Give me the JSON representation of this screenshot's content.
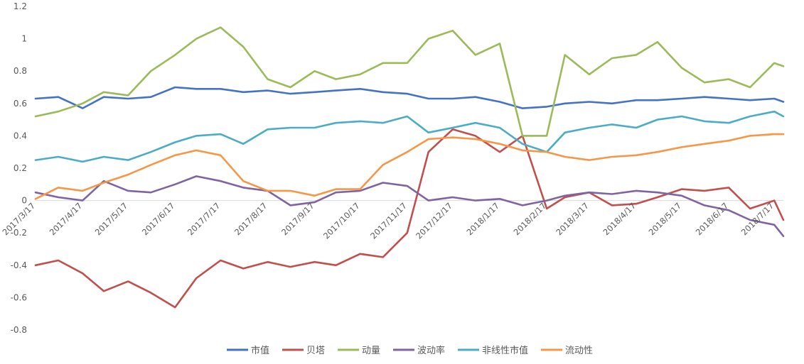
{
  "chart_data": {
    "type": "line",
    "title": "",
    "xlabel": "",
    "ylabel": "",
    "ylim": [
      -0.8,
      1.2
    ],
    "y_ticks": [
      "1.2",
      "1",
      "0.8",
      "0.6",
      "0.4",
      "0.2",
      "0",
      "-0.2",
      "-0.4",
      "-0.6",
      "-0.8"
    ],
    "y_tick_values": [
      1.2,
      1.0,
      0.8,
      0.6,
      0.4,
      0.2,
      0,
      -0.2,
      -0.4,
      -0.6,
      -0.8
    ],
    "grid": false,
    "legend_position": "bottom",
    "x_tick_labels": [
      "2017/3/17",
      "2017/4/17",
      "2017/5/17",
      "2017/6/17",
      "2017/7/17",
      "2017/8/17",
      "2017/9/17",
      "2017/10/17",
      "2017/11/17",
      "2017/12/17",
      "2018/1/17",
      "2018/2/17",
      "2018/3/17",
      "2018/4/17",
      "2018/5/17",
      "2018/6/17",
      "2018/7/17"
    ],
    "x_range": [
      "2017/3/17",
      "2018/7/23"
    ],
    "x": [
      "2017/3/17",
      "2017/4/1",
      "2017/4/17",
      "2017/5/1",
      "2017/5/17",
      "2017/6/1",
      "2017/6/17",
      "2017/7/1",
      "2017/7/17",
      "2017/8/1",
      "2017/8/17",
      "2017/9/1",
      "2017/9/17",
      "2017/10/1",
      "2017/10/17",
      "2017/11/1",
      "2017/11/17",
      "2017/12/1",
      "2017/12/17",
      "2018/1/1",
      "2018/1/17",
      "2018/2/1",
      "2018/2/17",
      "2018/3/1",
      "2018/3/17",
      "2018/4/1",
      "2018/4/17",
      "2018/5/1",
      "2018/5/17",
      "2018/6/1",
      "2018/6/17",
      "2018/7/1",
      "2018/7/17",
      "2018/7/23"
    ],
    "series": [
      {
        "name": "市值",
        "color": "#4472C4",
        "values": [
          0.63,
          0.64,
          0.57,
          0.64,
          0.63,
          0.64,
          0.7,
          0.69,
          0.69,
          0.67,
          0.68,
          0.66,
          0.67,
          0.68,
          0.69,
          0.67,
          0.66,
          0.63,
          0.63,
          0.64,
          0.61,
          0.57,
          0.58,
          0.6,
          0.61,
          0.6,
          0.62,
          0.62,
          0.63,
          0.64,
          0.63,
          0.62,
          0.63,
          0.61
        ]
      },
      {
        "name": "贝塔",
        "color": "#C0504D",
        "values": [
          -0.4,
          -0.37,
          -0.45,
          -0.56,
          -0.5,
          -0.57,
          -0.66,
          -0.48,
          -0.37,
          -0.42,
          -0.38,
          -0.41,
          -0.38,
          -0.4,
          -0.33,
          -0.35,
          -0.2,
          0.3,
          0.44,
          0.4,
          0.3,
          0.4,
          -0.05,
          0.02,
          0.05,
          -0.03,
          -0.02,
          0.02,
          0.07,
          0.06,
          0.08,
          -0.05,
          0.0,
          -0.12
        ]
      },
      {
        "name": "动量",
        "color": "#9BBB59",
        "values": [
          0.52,
          0.55,
          0.6,
          0.67,
          0.65,
          0.8,
          0.9,
          1.0,
          1.07,
          0.95,
          0.75,
          0.7,
          0.8,
          0.75,
          0.78,
          0.85,
          0.85,
          1.0,
          1.05,
          0.9,
          0.97,
          0.4,
          0.4,
          0.9,
          0.78,
          0.88,
          0.9,
          0.98,
          0.82,
          0.73,
          0.75,
          0.7,
          0.85,
          0.83
        ]
      },
      {
        "name": "波动率",
        "color": "#8064A2",
        "values": [
          0.05,
          0.02,
          0.0,
          0.12,
          0.06,
          0.05,
          0.1,
          0.15,
          0.12,
          0.08,
          0.06,
          -0.03,
          -0.01,
          0.05,
          0.06,
          0.11,
          0.09,
          0.0,
          0.02,
          0.0,
          0.01,
          -0.03,
          0.0,
          0.03,
          0.05,
          0.04,
          0.06,
          0.05,
          0.03,
          -0.03,
          -0.06,
          -0.12,
          -0.15,
          -0.22
        ]
      },
      {
        "name": "非线性市值",
        "color": "#4BACC6",
        "values": [
          0.25,
          0.27,
          0.24,
          0.27,
          0.25,
          0.3,
          0.36,
          0.4,
          0.41,
          0.35,
          0.44,
          0.45,
          0.45,
          0.48,
          0.49,
          0.48,
          0.52,
          0.42,
          0.45,
          0.48,
          0.45,
          0.35,
          0.3,
          0.42,
          0.45,
          0.47,
          0.45,
          0.5,
          0.52,
          0.49,
          0.48,
          0.52,
          0.55,
          0.52
        ]
      },
      {
        "name": "流动性",
        "color": "#F79646",
        "values": [
          0.01,
          0.08,
          0.06,
          0.11,
          0.16,
          0.22,
          0.28,
          0.31,
          0.28,
          0.12,
          0.06,
          0.06,
          0.03,
          0.07,
          0.07,
          0.22,
          0.3,
          0.38,
          0.39,
          0.38,
          0.35,
          0.31,
          0.3,
          0.27,
          0.25,
          0.27,
          0.28,
          0.3,
          0.33,
          0.35,
          0.37,
          0.4,
          0.41,
          0.41
        ]
      }
    ]
  }
}
